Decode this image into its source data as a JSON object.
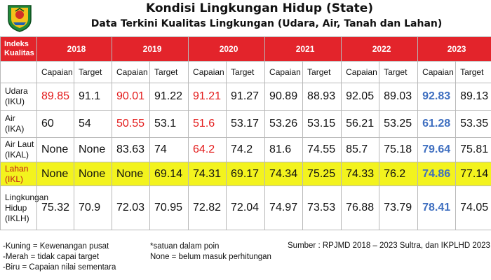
{
  "header": {
    "title": "Kondisi Lingkungan Hidup (State)",
    "subtitle": "Data Terkini Kualitas Lingkungan (Udara, Air, Tanah dan Lahan)"
  },
  "table": {
    "index_header": "Indeks Kualitas",
    "years": [
      "2018",
      "2019",
      "2020",
      "2021",
      "2022",
      "2023"
    ],
    "sub_headers": [
      "Capaian",
      "Target"
    ],
    "rows": [
      {
        "label": "Udara (IKU)",
        "cells": [
          {
            "v": "89.85",
            "c": "red"
          },
          {
            "v": "91.1",
            "c": ""
          },
          {
            "v": "90.01",
            "c": "red"
          },
          {
            "v": "91.22",
            "c": ""
          },
          {
            "v": "91.21",
            "c": "red"
          },
          {
            "v": "91.27",
            "c": ""
          },
          {
            "v": "90.89",
            "c": ""
          },
          {
            "v": "88.93",
            "c": ""
          },
          {
            "v": "92.05",
            "c": ""
          },
          {
            "v": "89.03",
            "c": ""
          },
          {
            "v": "92.83",
            "c": "blue"
          },
          {
            "v": "89.13",
            "c": ""
          }
        ]
      },
      {
        "label": "Air (IKA)",
        "cells": [
          {
            "v": "60",
            "c": ""
          },
          {
            "v": "54",
            "c": ""
          },
          {
            "v": "50.55",
            "c": "red"
          },
          {
            "v": "53.1",
            "c": ""
          },
          {
            "v": "51.6",
            "c": "red"
          },
          {
            "v": "53.17",
            "c": ""
          },
          {
            "v": "53.26",
            "c": ""
          },
          {
            "v": "53.15",
            "c": ""
          },
          {
            "v": "56.21",
            "c": ""
          },
          {
            "v": "53.25",
            "c": ""
          },
          {
            "v": "61.28",
            "c": "blue"
          },
          {
            "v": "53.35",
            "c": ""
          }
        ]
      },
      {
        "label": "Air Laut (IKAL)",
        "cells": [
          {
            "v": "None",
            "c": ""
          },
          {
            "v": "None",
            "c": ""
          },
          {
            "v": "83.63",
            "c": ""
          },
          {
            "v": "74",
            "c": ""
          },
          {
            "v": "64.2",
            "c": "red"
          },
          {
            "v": "74.2",
            "c": ""
          },
          {
            "v": "81.6",
            "c": ""
          },
          {
            "v": "74.55",
            "c": ""
          },
          {
            "v": "85.7",
            "c": ""
          },
          {
            "v": "75.18",
            "c": ""
          },
          {
            "v": "79.64",
            "c": "blue"
          },
          {
            "v": "75.81",
            "c": ""
          }
        ]
      },
      {
        "label": "Lahan (IKL)",
        "cells": [
          {
            "v": "None",
            "c": ""
          },
          {
            "v": "None",
            "c": ""
          },
          {
            "v": "None",
            "c": ""
          },
          {
            "v": "69.14",
            "c": ""
          },
          {
            "v": "74.31",
            "c": ""
          },
          {
            "v": "69.17",
            "c": ""
          },
          {
            "v": "74.34",
            "c": ""
          },
          {
            "v": "75.25",
            "c": ""
          },
          {
            "v": "74.33",
            "c": ""
          },
          {
            "v": "76.2",
            "c": ""
          },
          {
            "v": "74.86",
            "c": "blue"
          },
          {
            "v": "77.14",
            "c": ""
          }
        ]
      },
      {
        "label": "Lingkungan Hidup (IKLH)",
        "cells": [
          {
            "v": "75.32",
            "c": ""
          },
          {
            "v": "70.9",
            "c": ""
          },
          {
            "v": "72.03",
            "c": ""
          },
          {
            "v": "70.95",
            "c": ""
          },
          {
            "v": "72.82",
            "c": ""
          },
          {
            "v": "72.04",
            "c": ""
          },
          {
            "v": "74.97",
            "c": ""
          },
          {
            "v": "73.53",
            "c": ""
          },
          {
            "v": "76.88",
            "c": ""
          },
          {
            "v": "73.79",
            "c": ""
          },
          {
            "v": "78.41",
            "c": "blue"
          },
          {
            "v": "74.05",
            "c": ""
          }
        ]
      }
    ]
  },
  "footer": {
    "legend": [
      "-Kuning = Kewenangan pusat",
      "-Merah = tidak capai target",
      "-Biru = Capaian nilai sementara"
    ],
    "notes": [
      "*satuan dalam poin",
      "None = belum masuk perhitungan"
    ],
    "source": "Sumber : RPJMD 2018 – 2023 Sultra, dan IKPLHD 2023"
  },
  "colors": {
    "header_red": "#e3242b",
    "highlight_yellow": "#f3f31e",
    "red_text": "#e31b1b",
    "blue_text": "#3f6fc0"
  },
  "icons": {
    "logo": "provincial-crest-emblem"
  }
}
